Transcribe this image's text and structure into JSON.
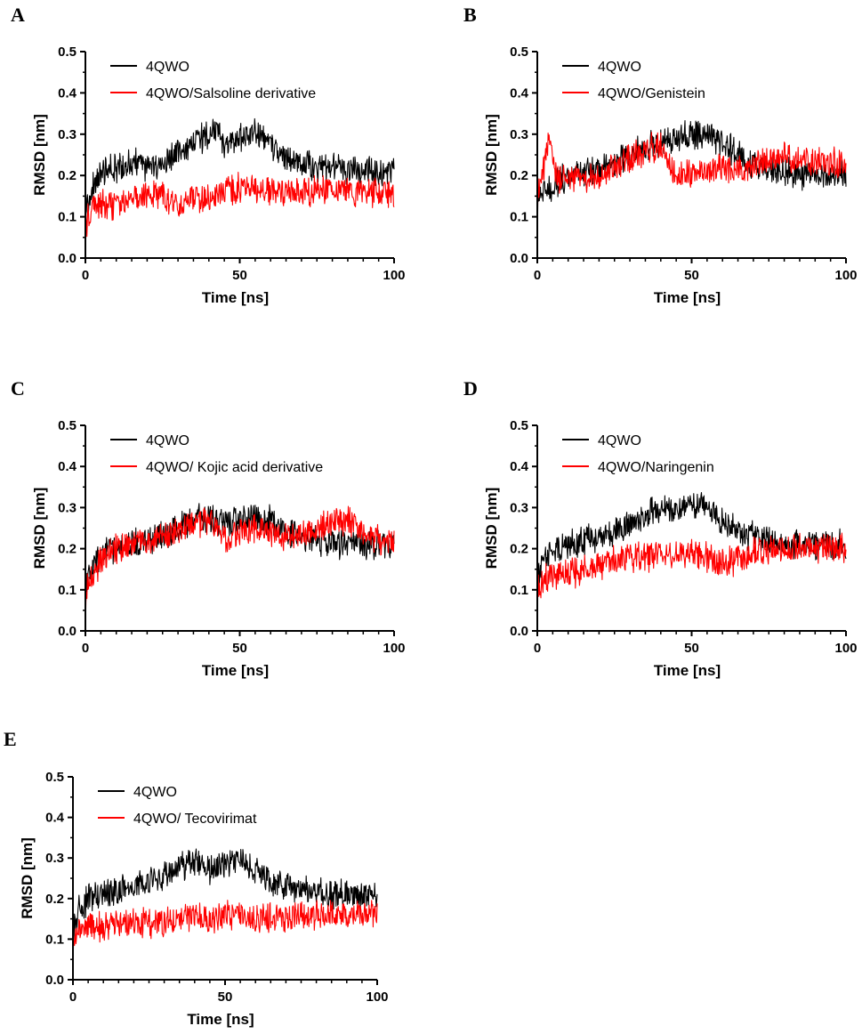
{
  "figure": {
    "panels": [
      "A",
      "B",
      "C",
      "D",
      "E"
    ]
  },
  "colors": {
    "protein": "#000000",
    "complex": "#ff0000"
  },
  "chart_data": [
    {
      "panel": "A",
      "type": "line",
      "xlabel": "Time [ns]",
      "ylabel": "RMSD [nm]",
      "xlim": [
        0,
        100
      ],
      "ylim": [
        0,
        0.5
      ],
      "xticks": [
        "0",
        "50",
        "100"
      ],
      "yticks": [
        "0.0",
        "0.1",
        "0.2",
        "0.3",
        "0.4",
        "0.5"
      ],
      "legend": "top-left",
      "series": [
        {
          "name": "4QWO",
          "color": "#000000",
          "x": [
            0,
            2,
            5,
            10,
            15,
            20,
            25,
            30,
            35,
            40,
            42,
            45,
            50,
            55,
            58,
            60,
            65,
            70,
            75,
            80,
            85,
            90,
            95,
            100
          ],
          "y": [
            0.12,
            0.17,
            0.2,
            0.22,
            0.23,
            0.22,
            0.23,
            0.26,
            0.28,
            0.3,
            0.31,
            0.27,
            0.29,
            0.3,
            0.29,
            0.27,
            0.24,
            0.23,
            0.22,
            0.22,
            0.21,
            0.21,
            0.21,
            0.21
          ]
        },
        {
          "name": "4QWO/Salsoline derivative",
          "color": "#ff0000",
          "x": [
            0,
            2,
            5,
            10,
            15,
            20,
            25,
            30,
            35,
            40,
            45,
            50,
            55,
            60,
            65,
            70,
            75,
            80,
            85,
            90,
            95,
            100
          ],
          "y": [
            0.08,
            0.12,
            0.13,
            0.13,
            0.14,
            0.16,
            0.15,
            0.13,
            0.14,
            0.15,
            0.16,
            0.17,
            0.17,
            0.16,
            0.16,
            0.16,
            0.16,
            0.17,
            0.16,
            0.16,
            0.16,
            0.16
          ]
        }
      ]
    },
    {
      "panel": "B",
      "type": "line",
      "xlabel": "Time [ns]",
      "ylabel": "RMSD [nm]",
      "xlim": [
        0,
        100
      ],
      "ylim": [
        0,
        0.5
      ],
      "xticks": [
        "0",
        "50",
        "100"
      ],
      "yticks": [
        "0.0",
        "0.1",
        "0.2",
        "0.3",
        "0.4",
        "0.5"
      ],
      "legend": "top-left",
      "series": [
        {
          "name": "4QWO",
          "color": "#000000",
          "x": [
            0,
            2,
            5,
            10,
            15,
            20,
            25,
            30,
            35,
            40,
            45,
            50,
            55,
            60,
            65,
            70,
            75,
            80,
            85,
            90,
            95,
            100
          ],
          "y": [
            0.12,
            0.16,
            0.18,
            0.2,
            0.21,
            0.22,
            0.23,
            0.25,
            0.27,
            0.28,
            0.29,
            0.3,
            0.3,
            0.28,
            0.25,
            0.23,
            0.22,
            0.21,
            0.2,
            0.2,
            0.2,
            0.2
          ]
        },
        {
          "name": "4QWO/Genistein",
          "color": "#ff0000",
          "x": [
            0,
            2,
            4,
            6,
            10,
            15,
            20,
            25,
            30,
            35,
            40,
            45,
            50,
            55,
            60,
            65,
            70,
            75,
            80,
            85,
            90,
            95,
            100
          ],
          "y": [
            0.15,
            0.22,
            0.3,
            0.2,
            0.19,
            0.19,
            0.2,
            0.22,
            0.24,
            0.26,
            0.27,
            0.2,
            0.2,
            0.21,
            0.22,
            0.21,
            0.22,
            0.24,
            0.25,
            0.24,
            0.23,
            0.23,
            0.23
          ]
        }
      ]
    },
    {
      "panel": "C",
      "type": "line",
      "xlabel": "Time [ns]",
      "ylabel": "RMSD [nm]",
      "xlim": [
        0,
        100
      ],
      "ylim": [
        0,
        0.5
      ],
      "xticks": [
        "0",
        "50",
        "100"
      ],
      "yticks": [
        "0.0",
        "0.1",
        "0.2",
        "0.3",
        "0.4",
        "0.5"
      ],
      "legend": "top-left",
      "series": [
        {
          "name": "4QWO",
          "color": "#000000",
          "x": [
            0,
            2,
            5,
            10,
            15,
            20,
            25,
            30,
            35,
            40,
            45,
            50,
            55,
            60,
            65,
            70,
            75,
            80,
            85,
            90,
            95,
            100
          ],
          "y": [
            0.11,
            0.15,
            0.18,
            0.2,
            0.21,
            0.22,
            0.23,
            0.25,
            0.27,
            0.28,
            0.26,
            0.28,
            0.28,
            0.27,
            0.24,
            0.23,
            0.22,
            0.21,
            0.21,
            0.21,
            0.21,
            0.21
          ]
        },
        {
          "name": "4QWO/ Kojic acid derivative",
          "color": "#ff0000",
          "x": [
            0,
            2,
            5,
            10,
            15,
            20,
            25,
            30,
            35,
            40,
            45,
            50,
            55,
            60,
            65,
            70,
            75,
            80,
            85,
            90,
            95,
            100
          ],
          "y": [
            0.09,
            0.13,
            0.17,
            0.2,
            0.21,
            0.22,
            0.23,
            0.24,
            0.26,
            0.27,
            0.22,
            0.24,
            0.25,
            0.24,
            0.23,
            0.24,
            0.25,
            0.26,
            0.27,
            0.24,
            0.22,
            0.22
          ]
        }
      ]
    },
    {
      "panel": "D",
      "type": "line",
      "xlabel": "Time [ns]",
      "ylabel": "RMSD [nm]",
      "xlim": [
        0,
        100
      ],
      "ylim": [
        0,
        0.5
      ],
      "xticks": [
        "0",
        "50",
        "100"
      ],
      "yticks": [
        "0.0",
        "0.1",
        "0.2",
        "0.3",
        "0.4",
        "0.5"
      ],
      "legend": "top-left",
      "series": [
        {
          "name": "4QWO",
          "color": "#000000",
          "x": [
            0,
            2,
            5,
            10,
            15,
            20,
            25,
            30,
            35,
            40,
            45,
            50,
            55,
            60,
            65,
            70,
            75,
            80,
            85,
            90,
            95,
            100
          ],
          "y": [
            0.13,
            0.17,
            0.2,
            0.21,
            0.22,
            0.23,
            0.24,
            0.26,
            0.28,
            0.3,
            0.29,
            0.31,
            0.3,
            0.27,
            0.24,
            0.23,
            0.22,
            0.21,
            0.21,
            0.21,
            0.21,
            0.21
          ]
        },
        {
          "name": "4QWO/Naringenin",
          "color": "#ff0000",
          "x": [
            0,
            2,
            5,
            10,
            15,
            20,
            25,
            30,
            35,
            40,
            45,
            50,
            55,
            60,
            65,
            70,
            75,
            80,
            85,
            90,
            95,
            100
          ],
          "y": [
            0.1,
            0.12,
            0.13,
            0.14,
            0.15,
            0.16,
            0.17,
            0.18,
            0.18,
            0.19,
            0.18,
            0.19,
            0.18,
            0.17,
            0.17,
            0.19,
            0.2,
            0.2,
            0.2,
            0.2,
            0.2,
            0.2
          ]
        }
      ]
    },
    {
      "panel": "E",
      "type": "line",
      "xlabel": "Time [ns]",
      "ylabel": "RMSD [nm]",
      "xlim": [
        0,
        100
      ],
      "ylim": [
        0,
        0.5
      ],
      "xticks": [
        "0",
        "50",
        "100"
      ],
      "yticks": [
        "0.0",
        "0.1",
        "0.2",
        "0.3",
        "0.4",
        "0.5"
      ],
      "legend": "top-left",
      "series": [
        {
          "name": "4QWO",
          "color": "#000000",
          "x": [
            0,
            2,
            5,
            10,
            15,
            20,
            25,
            30,
            35,
            40,
            45,
            50,
            55,
            60,
            65,
            70,
            75,
            80,
            85,
            90,
            95,
            100
          ],
          "y": [
            0.12,
            0.17,
            0.2,
            0.21,
            0.22,
            0.23,
            0.24,
            0.26,
            0.28,
            0.29,
            0.27,
            0.29,
            0.3,
            0.27,
            0.24,
            0.23,
            0.22,
            0.22,
            0.21,
            0.21,
            0.21,
            0.21
          ]
        },
        {
          "name": "4QWO/ Tecovirimat",
          "color": "#ff0000",
          "x": [
            0,
            2,
            5,
            10,
            15,
            20,
            25,
            30,
            35,
            40,
            45,
            50,
            55,
            60,
            65,
            70,
            75,
            80,
            85,
            90,
            95,
            100
          ],
          "y": [
            0.1,
            0.12,
            0.13,
            0.13,
            0.14,
            0.14,
            0.14,
            0.14,
            0.15,
            0.16,
            0.15,
            0.16,
            0.16,
            0.15,
            0.15,
            0.15,
            0.16,
            0.16,
            0.16,
            0.16,
            0.16,
            0.16
          ]
        }
      ]
    }
  ]
}
